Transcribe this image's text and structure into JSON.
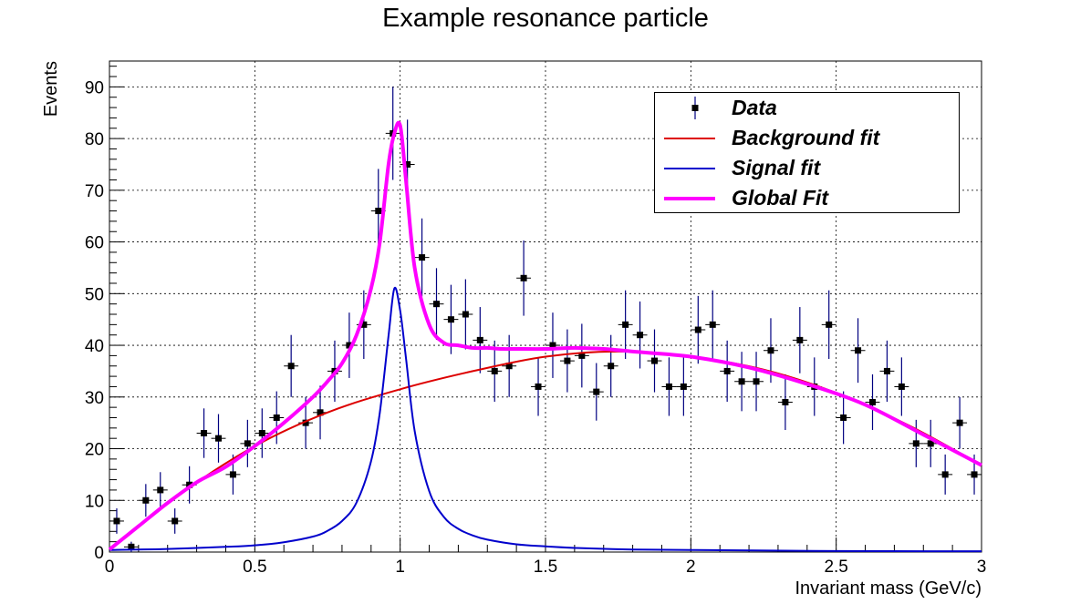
{
  "chart_data": {
    "type": "scatter",
    "title": "Example resonance particle",
    "xlabel": "Invariant mass (GeV/c)",
    "ylabel": "Events",
    "xlim": [
      0,
      3
    ],
    "ylim": [
      0,
      95
    ],
    "x_ticks": [
      "0",
      "0.5",
      "1",
      "1.5",
      "2",
      "2.5",
      "3"
    ],
    "y_ticks": [
      "0",
      "10",
      "20",
      "30",
      "40",
      "50",
      "60",
      "70",
      "80",
      "90"
    ],
    "grid": true,
    "legend_position": "top-right",
    "bin_width": 0.05,
    "series": [
      {
        "name": "Data",
        "kind": "points",
        "color": "#000000",
        "x": [
          0.025,
          0.075,
          0.125,
          0.175,
          0.225,
          0.275,
          0.325,
          0.375,
          0.425,
          0.475,
          0.525,
          0.575,
          0.625,
          0.675,
          0.725,
          0.775,
          0.825,
          0.875,
          0.925,
          0.975,
          1.025,
          1.075,
          1.125,
          1.175,
          1.225,
          1.275,
          1.325,
          1.375,
          1.425,
          1.475,
          1.525,
          1.575,
          1.625,
          1.675,
          1.725,
          1.775,
          1.825,
          1.875,
          1.925,
          1.975,
          2.025,
          2.075,
          2.125,
          2.175,
          2.225,
          2.275,
          2.325,
          2.375,
          2.425,
          2.475,
          2.525,
          2.575,
          2.625,
          2.675,
          2.725,
          2.775,
          2.825,
          2.875,
          2.925,
          2.975
        ],
        "y": [
          6,
          1,
          10,
          12,
          6,
          13,
          23,
          22,
          15,
          21,
          23,
          26,
          36,
          25,
          27,
          35,
          40,
          44,
          66,
          81,
          75,
          57,
          48,
          45,
          46,
          41,
          35,
          36,
          53,
          32,
          40,
          37,
          38,
          31,
          36,
          44,
          42,
          37,
          32,
          32,
          43,
          44,
          35,
          33,
          33,
          39,
          29,
          41,
          32,
          44,
          26,
          39,
          29,
          35,
          32,
          21,
          21,
          15,
          25,
          15
        ]
      },
      {
        "name": "Background fit",
        "kind": "line",
        "color": "#dd0000",
        "x": [
          0.0,
          0.25,
          0.5,
          0.75,
          1.0,
          1.25,
          1.5,
          1.75,
          2.0,
          2.25,
          2.5,
          2.75,
          3.0
        ],
        "y": [
          0.5,
          11.5,
          20.5,
          27,
          31.5,
          35,
          37.8,
          38.8,
          37.8,
          35.3,
          30.8,
          24.5,
          16.8
        ]
      },
      {
        "name": "Signal fit",
        "kind": "line",
        "color": "#0000cc",
        "x": [
          0.0,
          0.2,
          0.4,
          0.5,
          0.6,
          0.7,
          0.75,
          0.8,
          0.85,
          0.9,
          0.93,
          0.96,
          0.98,
          1.0,
          1.02,
          1.05,
          1.1,
          1.15,
          1.2,
          1.25,
          1.3,
          1.4,
          1.5,
          1.6,
          1.8,
          2.0,
          2.5,
          3.0
        ],
        "y": [
          0.4,
          0.6,
          1.0,
          1.3,
          1.9,
          3.0,
          4.1,
          6.0,
          9.6,
          17.6,
          27.0,
          41.8,
          51.0,
          46.7,
          37.6,
          23.4,
          11.8,
          6.8,
          4.5,
          3.2,
          2.4,
          1.5,
          1.1,
          0.8,
          0.5,
          0.4,
          0.2,
          0.15
        ]
      },
      {
        "name": "Global Fit",
        "kind": "line",
        "color": "#ff00ff",
        "x": [
          0.0,
          0.1,
          0.2,
          0.3,
          0.4,
          0.5,
          0.6,
          0.7,
          0.75,
          0.8,
          0.85,
          0.9,
          0.93,
          0.96,
          0.98,
          1.0,
          1.02,
          1.05,
          1.1,
          1.15,
          1.2,
          1.25,
          1.3,
          1.35,
          1.4,
          1.5,
          1.6,
          1.7,
          1.8,
          2.0,
          2.2,
          2.4,
          2.6,
          2.8,
          3.0
        ],
        "y": [
          0.5,
          5,
          9.5,
          13.5,
          16.5,
          20.5,
          25,
          30,
          33,
          36.5,
          42,
          51,
          60,
          75,
          81,
          82.5,
          72,
          55,
          44,
          40.5,
          40,
          39.5,
          39.5,
          39.3,
          39.3,
          39.3,
          39.5,
          39.3,
          38.8,
          37.8,
          35.7,
          32.5,
          28.5,
          22.7,
          16.8
        ]
      }
    ]
  }
}
